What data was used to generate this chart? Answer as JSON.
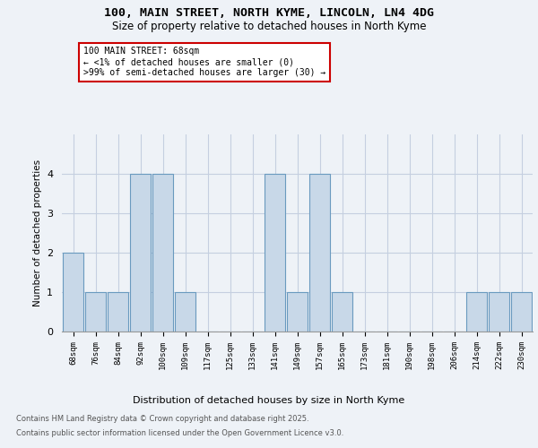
{
  "title1": "100, MAIN STREET, NORTH KYME, LINCOLN, LN4 4DG",
  "title2": "Size of property relative to detached houses in North Kyme",
  "xlabel": "Distribution of detached houses by size in North Kyme",
  "ylabel": "Number of detached properties",
  "categories": [
    "68sqm",
    "76sqm",
    "84sqm",
    "92sqm",
    "100sqm",
    "109sqm",
    "117sqm",
    "125sqm",
    "133sqm",
    "141sqm",
    "149sqm",
    "157sqm",
    "165sqm",
    "173sqm",
    "181sqm",
    "190sqm",
    "198sqm",
    "206sqm",
    "214sqm",
    "222sqm",
    "230sqm"
  ],
  "values": [
    2,
    1,
    1,
    4,
    4,
    1,
    0,
    0,
    0,
    4,
    1,
    4,
    1,
    0,
    0,
    0,
    0,
    0,
    1,
    1,
    1
  ],
  "bar_color": "#c8d8e8",
  "bar_edge_color": "#6a9abf",
  "annotation_box_color": "#ffffff",
  "annotation_border_color": "#cc0000",
  "annotation_text_line1": "100 MAIN STREET: 68sqm",
  "annotation_text_line2": "← <1% of detached houses are smaller (0)",
  "annotation_text_line3": ">99% of semi-detached houses are larger (30) →",
  "ylim": [
    0,
    5
  ],
  "yticks": [
    0,
    1,
    2,
    3,
    4
  ],
  "footnote1": "Contains HM Land Registry data © Crown copyright and database right 2025.",
  "footnote2": "Contains public sector information licensed under the Open Government Licence v3.0.",
  "background_color": "#eef2f7",
  "grid_color": "#c5cfe0"
}
